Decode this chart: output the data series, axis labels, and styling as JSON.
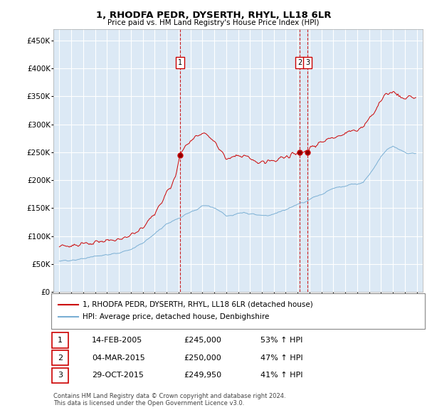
{
  "title": "1, RHODFA PEDR, DYSERTH, RHYL, LL18 6LR",
  "subtitle": "Price paid vs. HM Land Registry's House Price Index (HPI)",
  "ylabel_ticks": [
    "£0",
    "£50K",
    "£100K",
    "£150K",
    "£200K",
    "£250K",
    "£300K",
    "£350K",
    "£400K",
    "£450K"
  ],
  "ytick_values": [
    0,
    50000,
    100000,
    150000,
    200000,
    250000,
    300000,
    350000,
    400000,
    450000
  ],
  "ylim": [
    0,
    470000
  ],
  "xlim_start": 1994.5,
  "xlim_end": 2025.5,
  "transactions": [
    {
      "num": 1,
      "date": "14-FEB-2005",
      "price": 245000,
      "hpi": "53% ↑ HPI",
      "year": 2005.12
    },
    {
      "num": 2,
      "date": "04-MAR-2015",
      "price": 250000,
      "hpi": "47% ↑ HPI",
      "year": 2015.18
    },
    {
      "num": 3,
      "date": "29-OCT-2015",
      "price": 249950,
      "hpi": "41% ↑ HPI",
      "year": 2015.83
    }
  ],
  "legend_red": "1, RHODFA PEDR, DYSERTH, RHYL, LL18 6LR (detached house)",
  "legend_blue": "HPI: Average price, detached house, Denbighshire",
  "footer": "Contains HM Land Registry data © Crown copyright and database right 2024.\nThis data is licensed under the Open Government Licence v3.0.",
  "bg_color": "#dce9f5",
  "line_red": "#cc0000",
  "line_blue": "#7aafd4",
  "grid_color": "#ffffff",
  "transaction_marker_prices": [
    245000,
    250000,
    249950
  ]
}
